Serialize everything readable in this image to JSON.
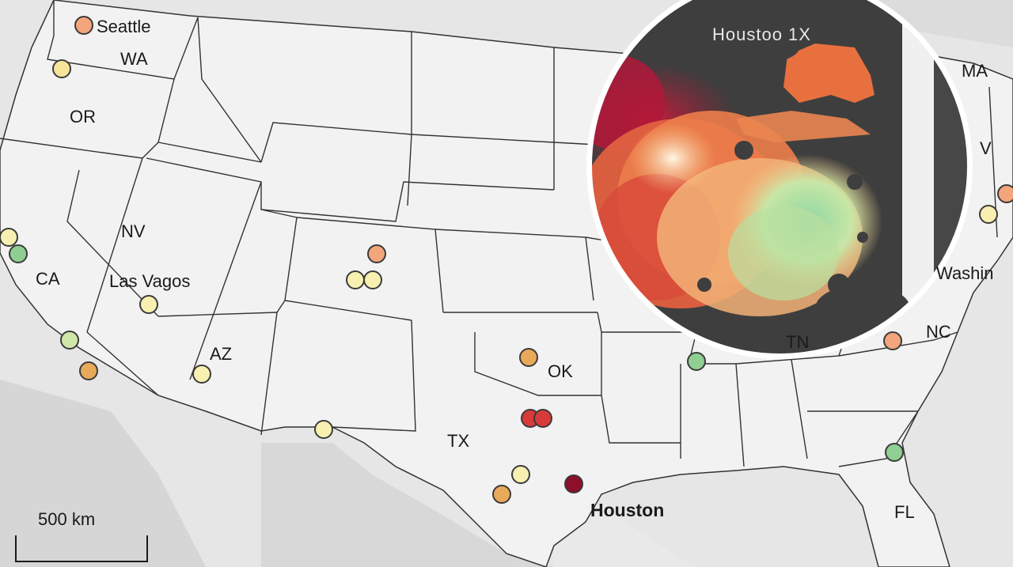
{
  "map": {
    "state_labels": [
      {
        "id": "wa",
        "text": "WA"
      },
      {
        "id": "or",
        "text": "OR"
      },
      {
        "id": "nv",
        "text": "NV"
      },
      {
        "id": "ca",
        "text": "CA"
      },
      {
        "id": "az",
        "text": "AZ"
      },
      {
        "id": "ok",
        "text": "OK"
      },
      {
        "id": "tx",
        "text": "TX"
      },
      {
        "id": "nc",
        "text": "NC"
      },
      {
        "id": "tn",
        "text": "TN"
      },
      {
        "id": "fl",
        "text": "FL"
      },
      {
        "id": "ma",
        "text": "MA"
      },
      {
        "id": "va",
        "text": "V"
      }
    ],
    "city_labels": [
      {
        "id": "seattle",
        "text": "Seattle"
      },
      {
        "id": "las-vegas",
        "text": "Las Vagos"
      },
      {
        "id": "houston",
        "text": "Houston"
      },
      {
        "id": "washington",
        "text": "Washin"
      }
    ],
    "inset": {
      "title": "Houstoo 1X"
    },
    "scale_bar": {
      "label": "500 km"
    },
    "marker_colors": {
      "dark_red": "#8e0f2b",
      "red": "#d83a3a",
      "salmon": "#f3a57c",
      "orange": "#e8a95a",
      "light_yellow": "#f8f0b0",
      "yellow": "#f6e49a",
      "light_green": "#cfe7a8",
      "green": "#8fcf93"
    }
  }
}
